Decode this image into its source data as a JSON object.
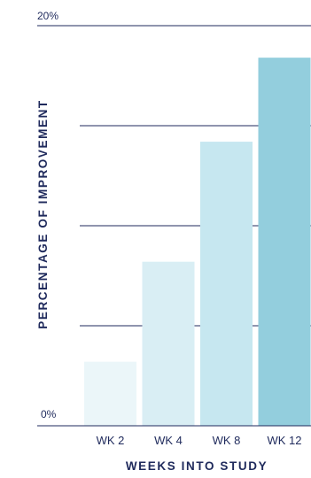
{
  "chart_data": {
    "type": "bar",
    "categories": [
      "WK 2",
      "WK 4",
      "WK 8",
      "WK 12"
    ],
    "values": [
      3.2,
      8.2,
      14.2,
      18.4
    ],
    "ylim": [
      0,
      20
    ],
    "yticks": [
      "0%",
      "20%"
    ],
    "xlabel": "WEEKS INTO STUDY",
    "ylabel": "PERCENTAGE OF IMPROVEMENT",
    "grid": true,
    "colors": [
      "#ebf6f9",
      "#d9eef4",
      "#c6e7f0",
      "#93cedd"
    ],
    "axis_color": "#1f2a5c"
  }
}
